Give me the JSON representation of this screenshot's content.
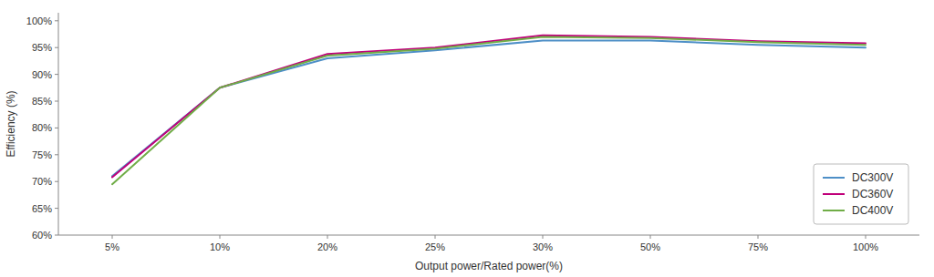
{
  "chart_data": {
    "type": "line",
    "xlabel": "Output power/Rated power(%)",
    "ylabel": "Efficiency (%)",
    "categories": [
      "5%",
      "10%",
      "20%",
      "25%",
      "30%",
      "50%",
      "75%",
      "100%"
    ],
    "series": [
      {
        "name": "DC300V",
        "color": "#4E8FC7",
        "values": [
          71.0,
          87.5,
          93.0,
          94.5,
          96.3,
          96.3,
          95.5,
          95.0
        ]
      },
      {
        "name": "DC360V",
        "color": "#C0007A",
        "values": [
          70.8,
          87.5,
          93.8,
          95.0,
          97.3,
          97.0,
          96.2,
          95.8
        ]
      },
      {
        "name": "DC400V",
        "color": "#70AD47",
        "values": [
          69.5,
          87.5,
          93.5,
          94.8,
          97.0,
          96.8,
          96.0,
          95.5
        ]
      }
    ],
    "ylim": [
      60,
      101.5
    ],
    "yticks": [
      {
        "value": 60,
        "label": "60%"
      },
      {
        "value": 65,
        "label": "65%"
      },
      {
        "value": 70,
        "label": "70%"
      },
      {
        "value": 75,
        "label": "75%"
      },
      {
        "value": 80,
        "label": "80%"
      },
      {
        "value": 85,
        "label": "85%"
      },
      {
        "value": 90,
        "label": "90%"
      },
      {
        "value": 95,
        "label": "95%"
      },
      {
        "value": 100,
        "label": "100%"
      }
    ],
    "grid": false,
    "legend": "lower right"
  }
}
